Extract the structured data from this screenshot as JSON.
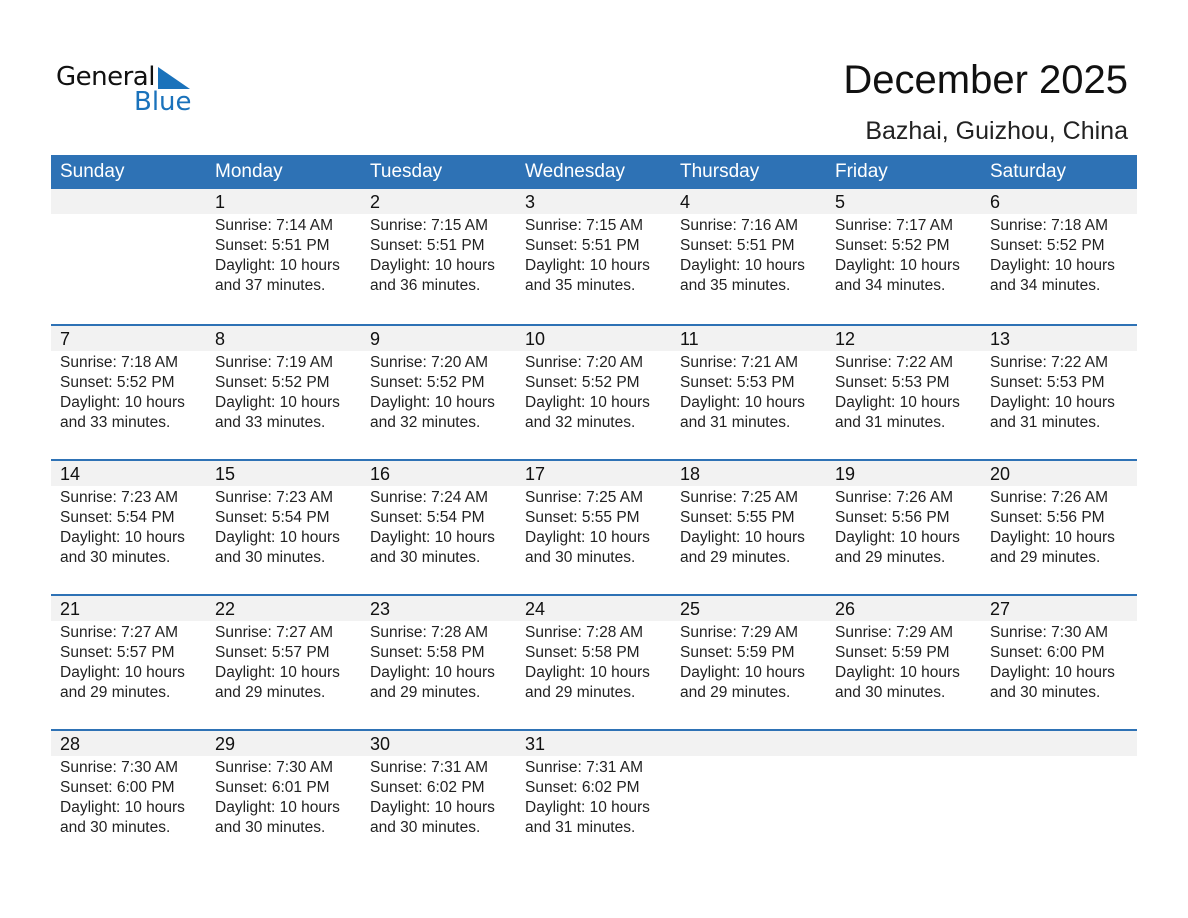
{
  "logo": {
    "word1": "General",
    "word2": "Blue",
    "color": "#1a72bb"
  },
  "title": "December 2025",
  "location": "Bazhai, Guizhou, China",
  "colors": {
    "header": "#2e72b5",
    "date_band": "#f2f2f2"
  },
  "weekdays": [
    "Sunday",
    "Monday",
    "Tuesday",
    "Wednesday",
    "Thursday",
    "Friday",
    "Saturday"
  ],
  "weeks": [
    [
      null,
      {
        "day": "1",
        "sunrise": "Sunrise: 7:14 AM",
        "sunset": "Sunset: 5:51 PM",
        "daylight": "Daylight: 10 hours",
        "minutes": "and 37 minutes."
      },
      {
        "day": "2",
        "sunrise": "Sunrise: 7:15 AM",
        "sunset": "Sunset: 5:51 PM",
        "daylight": "Daylight: 10 hours",
        "minutes": "and 36 minutes."
      },
      {
        "day": "3",
        "sunrise": "Sunrise: 7:15 AM",
        "sunset": "Sunset: 5:51 PM",
        "daylight": "Daylight: 10 hours",
        "minutes": "and 35 minutes."
      },
      {
        "day": "4",
        "sunrise": "Sunrise: 7:16 AM",
        "sunset": "Sunset: 5:51 PM",
        "daylight": "Daylight: 10 hours",
        "minutes": "and 35 minutes."
      },
      {
        "day": "5",
        "sunrise": "Sunrise: 7:17 AM",
        "sunset": "Sunset: 5:52 PM",
        "daylight": "Daylight: 10 hours",
        "minutes": "and 34 minutes."
      },
      {
        "day": "6",
        "sunrise": "Sunrise: 7:18 AM",
        "sunset": "Sunset: 5:52 PM",
        "daylight": "Daylight: 10 hours",
        "minutes": "and 34 minutes."
      }
    ],
    [
      {
        "day": "7",
        "sunrise": "Sunrise: 7:18 AM",
        "sunset": "Sunset: 5:52 PM",
        "daylight": "Daylight: 10 hours",
        "minutes": "and 33 minutes."
      },
      {
        "day": "8",
        "sunrise": "Sunrise: 7:19 AM",
        "sunset": "Sunset: 5:52 PM",
        "daylight": "Daylight: 10 hours",
        "minutes": "and 33 minutes."
      },
      {
        "day": "9",
        "sunrise": "Sunrise: 7:20 AM",
        "sunset": "Sunset: 5:52 PM",
        "daylight": "Daylight: 10 hours",
        "minutes": "and 32 minutes."
      },
      {
        "day": "10",
        "sunrise": "Sunrise: 7:20 AM",
        "sunset": "Sunset: 5:52 PM",
        "daylight": "Daylight: 10 hours",
        "minutes": "and 32 minutes."
      },
      {
        "day": "11",
        "sunrise": "Sunrise: 7:21 AM",
        "sunset": "Sunset: 5:53 PM",
        "daylight": "Daylight: 10 hours",
        "minutes": "and 31 minutes."
      },
      {
        "day": "12",
        "sunrise": "Sunrise: 7:22 AM",
        "sunset": "Sunset: 5:53 PM",
        "daylight": "Daylight: 10 hours",
        "minutes": "and 31 minutes."
      },
      {
        "day": "13",
        "sunrise": "Sunrise: 7:22 AM",
        "sunset": "Sunset: 5:53 PM",
        "daylight": "Daylight: 10 hours",
        "minutes": "and 31 minutes."
      }
    ],
    [
      {
        "day": "14",
        "sunrise": "Sunrise: 7:23 AM",
        "sunset": "Sunset: 5:54 PM",
        "daylight": "Daylight: 10 hours",
        "minutes": "and 30 minutes."
      },
      {
        "day": "15",
        "sunrise": "Sunrise: 7:23 AM",
        "sunset": "Sunset: 5:54 PM",
        "daylight": "Daylight: 10 hours",
        "minutes": "and 30 minutes."
      },
      {
        "day": "16",
        "sunrise": "Sunrise: 7:24 AM",
        "sunset": "Sunset: 5:54 PM",
        "daylight": "Daylight: 10 hours",
        "minutes": "and 30 minutes."
      },
      {
        "day": "17",
        "sunrise": "Sunrise: 7:25 AM",
        "sunset": "Sunset: 5:55 PM",
        "daylight": "Daylight: 10 hours",
        "minutes": "and 30 minutes."
      },
      {
        "day": "18",
        "sunrise": "Sunrise: 7:25 AM",
        "sunset": "Sunset: 5:55 PM",
        "daylight": "Daylight: 10 hours",
        "minutes": "and 29 minutes."
      },
      {
        "day": "19",
        "sunrise": "Sunrise: 7:26 AM",
        "sunset": "Sunset: 5:56 PM",
        "daylight": "Daylight: 10 hours",
        "minutes": "and 29 minutes."
      },
      {
        "day": "20",
        "sunrise": "Sunrise: 7:26 AM",
        "sunset": "Sunset: 5:56 PM",
        "daylight": "Daylight: 10 hours",
        "minutes": "and 29 minutes."
      }
    ],
    [
      {
        "day": "21",
        "sunrise": "Sunrise: 7:27 AM",
        "sunset": "Sunset: 5:57 PM",
        "daylight": "Daylight: 10 hours",
        "minutes": "and 29 minutes."
      },
      {
        "day": "22",
        "sunrise": "Sunrise: 7:27 AM",
        "sunset": "Sunset: 5:57 PM",
        "daylight": "Daylight: 10 hours",
        "minutes": "and 29 minutes."
      },
      {
        "day": "23",
        "sunrise": "Sunrise: 7:28 AM",
        "sunset": "Sunset: 5:58 PM",
        "daylight": "Daylight: 10 hours",
        "minutes": "and 29 minutes."
      },
      {
        "day": "24",
        "sunrise": "Sunrise: 7:28 AM",
        "sunset": "Sunset: 5:58 PM",
        "daylight": "Daylight: 10 hours",
        "minutes": "and 29 minutes."
      },
      {
        "day": "25",
        "sunrise": "Sunrise: 7:29 AM",
        "sunset": "Sunset: 5:59 PM",
        "daylight": "Daylight: 10 hours",
        "minutes": "and 29 minutes."
      },
      {
        "day": "26",
        "sunrise": "Sunrise: 7:29 AM",
        "sunset": "Sunset: 5:59 PM",
        "daylight": "Daylight: 10 hours",
        "minutes": "and 30 minutes."
      },
      {
        "day": "27",
        "sunrise": "Sunrise: 7:30 AM",
        "sunset": "Sunset: 6:00 PM",
        "daylight": "Daylight: 10 hours",
        "minutes": "and 30 minutes."
      }
    ],
    [
      {
        "day": "28",
        "sunrise": "Sunrise: 7:30 AM",
        "sunset": "Sunset: 6:00 PM",
        "daylight": "Daylight: 10 hours",
        "minutes": "and 30 minutes."
      },
      {
        "day": "29",
        "sunrise": "Sunrise: 7:30 AM",
        "sunset": "Sunset: 6:01 PM",
        "daylight": "Daylight: 10 hours",
        "minutes": "and 30 minutes."
      },
      {
        "day": "30",
        "sunrise": "Sunrise: 7:31 AM",
        "sunset": "Sunset: 6:02 PM",
        "daylight": "Daylight: 10 hours",
        "minutes": "and 30 minutes."
      },
      {
        "day": "31",
        "sunrise": "Sunrise: 7:31 AM",
        "sunset": "Sunset: 6:02 PM",
        "daylight": "Daylight: 10 hours",
        "minutes": "and 31 minutes."
      },
      null,
      null,
      null
    ]
  ]
}
